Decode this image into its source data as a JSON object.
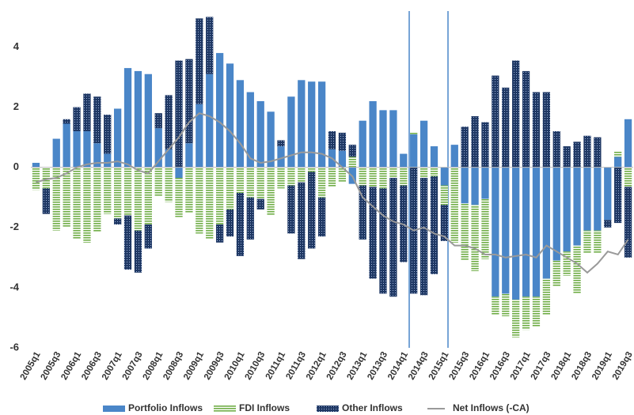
{
  "chart_data": {
    "type": "bar",
    "stacked": true,
    "categories": [
      "2005q1",
      null,
      "2005q3",
      null,
      "2006q1",
      null,
      "2006q3",
      null,
      "2007q1",
      null,
      "2007q3",
      null,
      "2008q1",
      null,
      "2008q3",
      null,
      "2009q1",
      null,
      "2009q3",
      null,
      "2010q1",
      null,
      "2010q3",
      null,
      "2011q1",
      null,
      "2011q3",
      null,
      "2012q1",
      null,
      "2012q3",
      null,
      "2013q1",
      null,
      "2013q3",
      null,
      "2014q1",
      null,
      "2014q3",
      null,
      "2015q1",
      null,
      "2015q3",
      null,
      "2016q1",
      null,
      "2016q3",
      null,
      "2017q1",
      null,
      "2017q3",
      null,
      "2018q1",
      null,
      "2018q3",
      null,
      "2019q1",
      null,
      "2019q3"
    ],
    "series": [
      {
        "name": "Portfolio Inflows",
        "color": "#4a86c8",
        "kind": "bar",
        "values": [
          0.15,
          0,
          0.95,
          1.45,
          1.2,
          1.2,
          0.8,
          0.45,
          1.95,
          3.3,
          3.2,
          3.1,
          1.3,
          0.6,
          -0.35,
          0.8,
          2.1,
          3.1,
          3.8,
          3.45,
          2.9,
          2.5,
          2.2,
          1.85,
          0.7,
          2.35,
          2.9,
          2.85,
          2.85,
          0.6,
          0.55,
          -0.55,
          1.55,
          2.2,
          1.9,
          1.9,
          0.45,
          1.1,
          1.55,
          0.7,
          -0.6,
          0.75,
          -1.2,
          -1.25,
          -1.05,
          -4.3,
          -4.2,
          -4.4,
          -4.3,
          -4.3,
          -3.7,
          -3.1,
          -2.8,
          -2.6,
          -2.1,
          -2.1,
          -1.75,
          0.35,
          1.6
        ]
      },
      {
        "name": "FDI Inflows",
        "color": "#70ad47",
        "kind": "bar",
        "values": [
          -0.75,
          -0.7,
          -2.1,
          -2.0,
          -2.4,
          -2.5,
          -2.15,
          -1.55,
          -1.7,
          -1.6,
          -2.1,
          -1.9,
          -0.95,
          -1.15,
          -1.3,
          -1.5,
          -2.2,
          -2.4,
          -1.9,
          -1.4,
          -0.85,
          -1.0,
          -1.05,
          -1.6,
          -0.7,
          -0.6,
          -0.5,
          -0.15,
          -1.0,
          -0.65,
          -0.5,
          0.35,
          -0.6,
          -0.65,
          -0.7,
          -0.35,
          -0.6,
          0.05,
          -0.35,
          -0.3,
          -0.65,
          -2.5,
          -1.9,
          -2.2,
          -2.0,
          -0.6,
          -0.75,
          -1.25,
          -1.1,
          -1.0,
          -1.2,
          -0.85,
          -0.8,
          -1.6,
          -0.75,
          -0.75,
          0,
          0.2,
          -0.65
        ]
      },
      {
        "name": "Other Inflows",
        "color": "#1f3864",
        "kind": "bar",
        "values": [
          0,
          -0.85,
          0,
          0.15,
          0.8,
          1.25,
          1.55,
          1.3,
          -0.2,
          -1.8,
          -1.4,
          -0.8,
          0.5,
          1.8,
          3.55,
          2.8,
          2.85,
          1.9,
          -0.6,
          -0.9,
          -2.1,
          -1.4,
          -0.35,
          0,
          0.2,
          -1.6,
          -2.55,
          -2.55,
          -1.3,
          0.6,
          0.6,
          0.4,
          -1.8,
          -3.05,
          -3.5,
          -3.95,
          -2.55,
          -4.2,
          -3.9,
          -3.25,
          -1.2,
          0,
          1.35,
          1.7,
          1.5,
          3.05,
          2.65,
          3.55,
          3.2,
          2.5,
          2.5,
          1.2,
          0.7,
          0.85,
          1.05,
          1.0,
          -0.25,
          -1.85,
          -2.35
        ]
      },
      {
        "name": "Net Inflows (-CA)",
        "color": "#9a9a9a",
        "kind": "line",
        "values": [
          -0.5,
          -0.4,
          -0.35,
          -0.2,
          0.0,
          0.1,
          0.15,
          0.15,
          0.2,
          0.1,
          -0.1,
          -0.2,
          0.2,
          0.6,
          1.0,
          1.5,
          1.8,
          1.7,
          1.5,
          1.2,
          0.8,
          0.3,
          0.15,
          0.2,
          0.3,
          0.4,
          0.5,
          0.5,
          0.45,
          0.3,
          0.0,
          -0.3,
          -1.0,
          -1.3,
          -1.6,
          -1.8,
          -1.9,
          -2.1,
          -2.0,
          -2.2,
          -2.3,
          -2.6,
          -2.6,
          -2.7,
          -2.9,
          -2.9,
          -3.0,
          -2.95,
          -2.9,
          -3.0,
          -2.6,
          -2.8,
          -3.0,
          -3.2,
          -3.5,
          -3.2,
          -2.8,
          -2.9,
          -2.4
        ]
      }
    ],
    "ylim": [
      -6,
      5.3
    ],
    "yticks": [
      -6,
      -4,
      -2,
      0,
      2,
      4
    ],
    "grid": false,
    "legend": "bottom"
  }
}
